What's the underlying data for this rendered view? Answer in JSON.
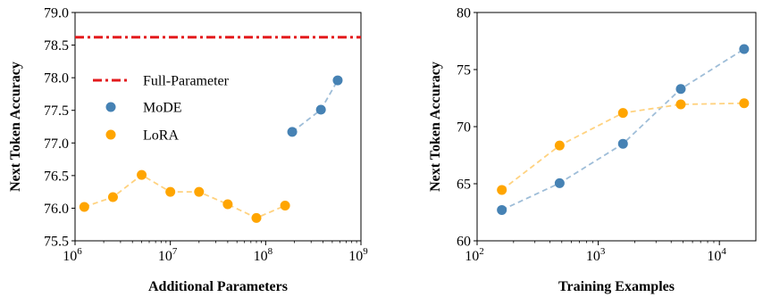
{
  "chart_data": [
    {
      "type": "line",
      "xlabel": "Additional Parameters",
      "ylabel": "Next Token Accuracy",
      "xscale": "log",
      "xlim": [
        1000000,
        1000000000
      ],
      "ylim": [
        75.5,
        79.0
      ],
      "xticks": [
        {
          "value": 1000000,
          "base": "10",
          "exp": "6"
        },
        {
          "value": 10000000,
          "base": "10",
          "exp": "7"
        },
        {
          "value": 100000000,
          "base": "10",
          "exp": "8"
        },
        {
          "value": 1000000000,
          "base": "10",
          "exp": "9"
        }
      ],
      "yticks": [
        "75.5",
        "76.0",
        "76.5",
        "77.0",
        "77.5",
        "78.0",
        "78.5",
        "79.0"
      ],
      "grid": false,
      "legend_position": "center-left",
      "hlines": [
        {
          "name": "Full-Parameter",
          "y": 78.62,
          "color": "#e31a1c",
          "style": "dashdot"
        }
      ],
      "series": [
        {
          "name": "MoDE",
          "color": "#4682b4",
          "line_color": "#9ebdd8",
          "x": [
            190000000,
            380000000,
            570000000
          ],
          "y": [
            77.17,
            77.51,
            77.96
          ]
        },
        {
          "name": "LoRA",
          "color": "#ffa500",
          "line_color": "#ffd27f",
          "x": [
            1250000,
            2500000,
            5000000,
            10000000,
            20000000,
            40000000,
            80000000,
            160000000
          ],
          "y": [
            76.02,
            76.17,
            76.51,
            76.25,
            76.25,
            76.06,
            75.85,
            76.04
          ]
        }
      ]
    },
    {
      "type": "line",
      "xlabel": "Training Examples",
      "ylabel": "Next Token Accuracy",
      "xscale": "log",
      "xlim": [
        100,
        20000
      ],
      "ylim": [
        60,
        80
      ],
      "xticks": [
        {
          "value": 100,
          "base": "10",
          "exp": "2"
        },
        {
          "value": 1000,
          "base": "10",
          "exp": "3"
        },
        {
          "value": 10000,
          "base": "10",
          "exp": "4"
        }
      ],
      "yticks": [
        "60",
        "65",
        "70",
        "75",
        "80"
      ],
      "grid": false,
      "series": [
        {
          "name": "MoDE",
          "color": "#4682b4",
          "line_color": "#9ebdd8",
          "x": [
            160,
            480,
            1600,
            4800,
            16000
          ],
          "y": [
            62.7,
            65.05,
            68.5,
            73.3,
            76.8
          ]
        },
        {
          "name": "LoRA",
          "color": "#ffa500",
          "line_color": "#ffd27f",
          "x": [
            160,
            480,
            1600,
            4800,
            16000
          ],
          "y": [
            64.45,
            68.35,
            71.2,
            71.95,
            72.05
          ]
        }
      ]
    }
  ]
}
